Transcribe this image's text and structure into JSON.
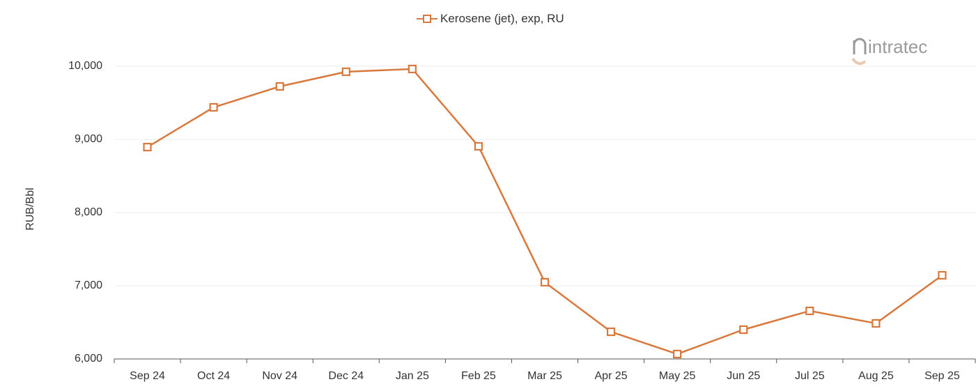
{
  "chart_data": {
    "type": "line",
    "title": "",
    "xlabel": "",
    "ylabel": "RUB/Bbl",
    "ylim": [
      6000,
      10000
    ],
    "yticks": [
      "6,000",
      "7,000",
      "8,000",
      "9,000",
      "10,000"
    ],
    "categories": [
      "Sep 24",
      "Oct 24",
      "Nov 24",
      "Dec 24",
      "Jan 25",
      "Feb 25",
      "Mar 25",
      "Apr 25",
      "May 25",
      "Jun 25",
      "Jul 25",
      "Aug 25",
      "Sep 25"
    ],
    "series": [
      {
        "name": "Kerosene (jet), exp, RU",
        "color": "#D9783C",
        "marker": "open-square",
        "values": [
          8895,
          9438,
          9724,
          9924,
          9962,
          8905,
          7048,
          6371,
          6067,
          6400,
          6657,
          6486,
          7143
        ]
      }
    ],
    "grid": true,
    "legend_position": "top-center"
  },
  "legend": {
    "label": "Kerosene (jet), exp, RU"
  },
  "axis": {
    "ylabel": "RUB/Bbl"
  },
  "logo": {
    "text": "intratec"
  },
  "colors": {
    "series": "#D9783C",
    "grid": "#eeeeee",
    "axis": "#555555",
    "logo_gray": "#9a9a9a",
    "logo_accent": "#e8c9b0"
  }
}
